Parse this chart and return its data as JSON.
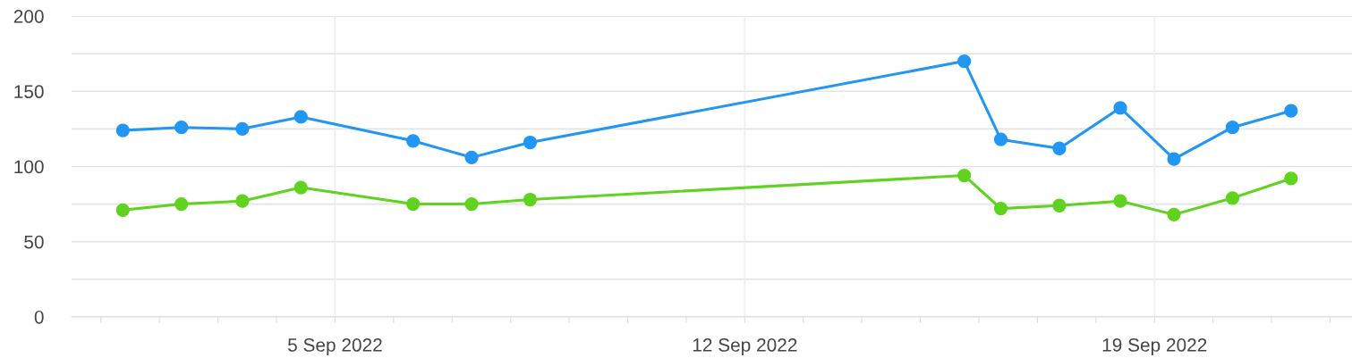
{
  "chart_data": {
    "type": "line",
    "x": [
      "2022-09-01T09:00",
      "2022-09-02T09:00",
      "2022-09-03T10:00",
      "2022-09-04T10:00",
      "2022-09-06T08:00",
      "2022-09-07T08:00",
      "2022-09-08T08:00",
      "2022-09-15T18:00",
      "2022-09-16T09:00",
      "2022-09-17T09:00",
      "2022-09-18T10:00",
      "2022-09-19T08:00",
      "2022-09-20T08:00",
      "2022-09-21T08:00"
    ],
    "series": [
      {
        "color": "#2196f3",
        "values": [
          124,
          126,
          125,
          133,
          117,
          106,
          116,
          170,
          118,
          112,
          139,
          105,
          126,
          137
        ]
      },
      {
        "color": "#5fd31f",
        "values": [
          71,
          75,
          77,
          86,
          75,
          75,
          78,
          94,
          72,
          74,
          77,
          68,
          79,
          92
        ]
      }
    ],
    "xlim": [
      "2022-08-31T12:00",
      "2022-09-22T09:00"
    ],
    "xticks": [
      {
        "value": "2022-09-01",
        "label": null
      },
      {
        "value": "2022-09-02",
        "label": null
      },
      {
        "value": "2022-09-03",
        "label": null
      },
      {
        "value": "2022-09-04",
        "label": null
      },
      {
        "value": "2022-09-05",
        "label": "5 Sep 2022"
      },
      {
        "value": "2022-09-06",
        "label": null
      },
      {
        "value": "2022-09-07",
        "label": null
      },
      {
        "value": "2022-09-08",
        "label": null
      },
      {
        "value": "2022-09-09",
        "label": null
      },
      {
        "value": "2022-09-10",
        "label": null
      },
      {
        "value": "2022-09-11",
        "label": null
      },
      {
        "value": "2022-09-12",
        "label": "12 Sep 2022"
      },
      {
        "value": "2022-09-13",
        "label": null
      },
      {
        "value": "2022-09-14",
        "label": null
      },
      {
        "value": "2022-09-15",
        "label": null
      },
      {
        "value": "2022-09-16",
        "label": null
      },
      {
        "value": "2022-09-17",
        "label": null
      },
      {
        "value": "2022-09-18",
        "label": null
      },
      {
        "value": "2022-09-19",
        "label": "19 Sep 2022"
      },
      {
        "value": "2022-09-20",
        "label": null
      },
      {
        "value": "2022-09-21",
        "label": null
      },
      {
        "value": "2022-09-22",
        "label": null
      }
    ],
    "ylim": [
      0,
      200
    ],
    "yticks": [
      0,
      {
        "value": 25,
        "label": null
      },
      50,
      {
        "value": 75,
        "label": null
      },
      100,
      {
        "value": 125,
        "label": null
      },
      150,
      {
        "value": 175,
        "label": null
      },
      200
    ],
    "grid": true,
    "legend": false,
    "marker": "circle",
    "line_style": "solid"
  }
}
